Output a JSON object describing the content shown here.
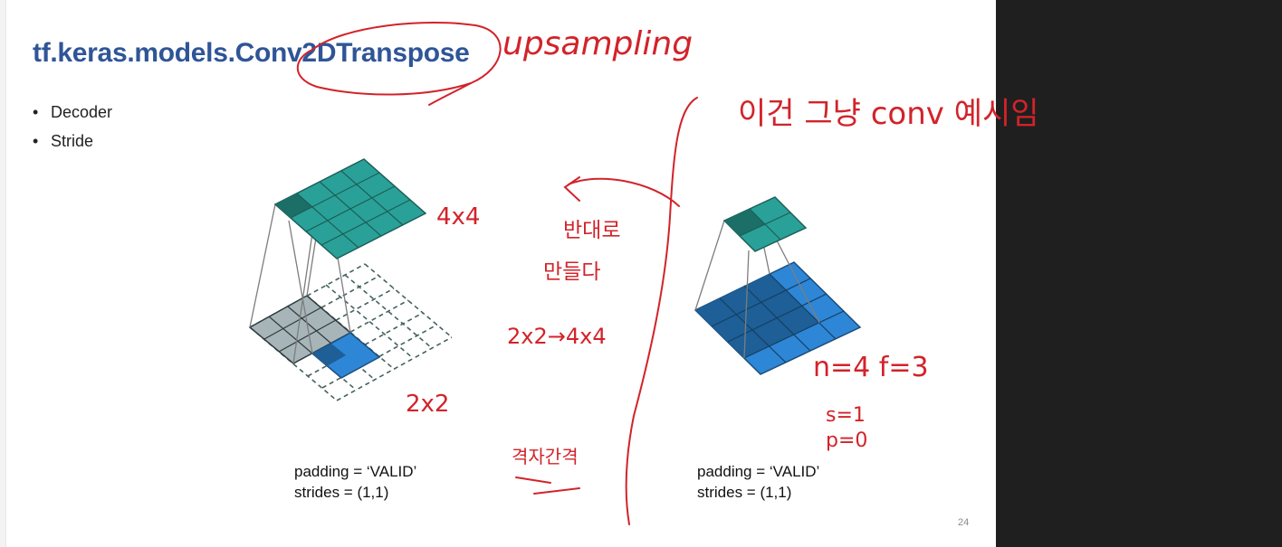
{
  "slide": {
    "title": "tf.keras.models.Conv2DTranspose",
    "bullets": [
      {
        "label": "Decoder"
      },
      {
        "label": "Stride"
      }
    ],
    "captions": {
      "left": {
        "padding": "padding = ‘VALID’",
        "strides": "strides = (1,1)"
      },
      "right": {
        "padding": "padding = ‘VALID’",
        "strides": "strides = (1,1)"
      }
    },
    "page_number": "24"
  },
  "annotations": {
    "color": "#d2232a",
    "upsampling": "upsampling",
    "note_conv": "이건 그냥 conv 예시임",
    "size_4x4": "4x4",
    "size_2x2": "2x2",
    "reverse_note_line1": "반대로",
    "reverse_note_line2": "만들다",
    "mapping": "2x2→4x4",
    "grid_note": "격자간격",
    "formula_nf": "n=4 f=3",
    "formula_s": "s=1",
    "formula_p": "p=0"
  },
  "colors": {
    "title": "#2f5597",
    "teal": "#2aa198",
    "teal_dark": "#1c7a70",
    "blue": "#2e86d6",
    "blue_dark": "#1d5f96",
    "gray": "#a7b5b8",
    "background_dark": "#1f1f1f"
  }
}
